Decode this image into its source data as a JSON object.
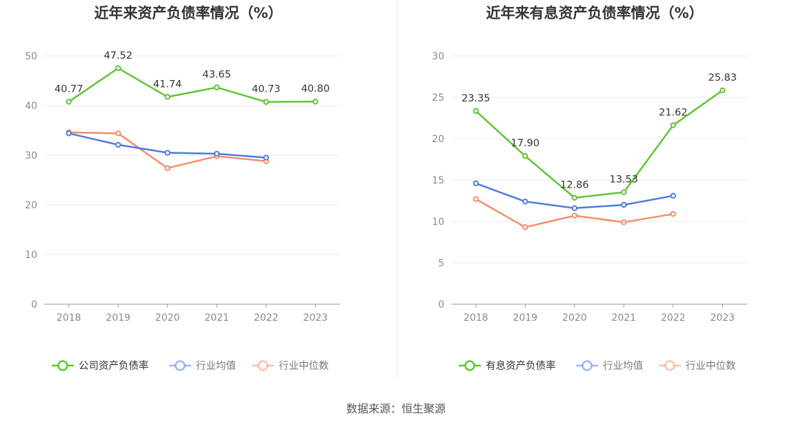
{
  "source": "数据来源：恒生聚源",
  "chart_data": [
    {
      "type": "line",
      "title": "近年来资产负债率情况（%）",
      "categories": [
        "2018",
        "2019",
        "2020",
        "2021",
        "2022",
        "2023"
      ],
      "ylim": [
        0,
        50
      ],
      "yticks": [
        "0",
        "10",
        "20",
        "30",
        "40",
        "50"
      ],
      "series": [
        {
          "name": "公司资产负债率",
          "color": "#5ec531",
          "values": [
            40.77,
            47.52,
            41.74,
            43.65,
            40.73,
            40.8
          ],
          "labels": [
            "40.77",
            "47.52",
            "41.74",
            "43.65",
            "40.73",
            "40.80"
          ],
          "show_labels": true
        },
        {
          "name": "行业均值",
          "color": "#4c7be0",
          "values": [
            34.4,
            32.1,
            30.5,
            30.3,
            29.5,
            null
          ],
          "show_labels": false
        },
        {
          "name": "行业中位数",
          "color": "#f58c68",
          "values": [
            34.6,
            34.4,
            27.4,
            29.8,
            28.8,
            null
          ],
          "show_labels": false
        }
      ]
    },
    {
      "type": "line",
      "title": "近年来有息资产负债率情况（%）",
      "categories": [
        "2018",
        "2019",
        "2020",
        "2021",
        "2022",
        "2023"
      ],
      "ylim": [
        0,
        30
      ],
      "yticks": [
        "0",
        "5",
        "10",
        "15",
        "20",
        "25",
        "30"
      ],
      "series": [
        {
          "name": "有息资产负债率",
          "color": "#5ec531",
          "values": [
            23.35,
            17.9,
            12.86,
            13.53,
            21.62,
            25.83
          ],
          "labels": [
            "23.35",
            "17.90",
            "12.86",
            "13.53",
            "21.62",
            "25.83"
          ],
          "show_labels": true
        },
        {
          "name": "行业均值",
          "color": "#4c7be0",
          "values": [
            14.6,
            12.4,
            11.6,
            12.0,
            13.1,
            null
          ],
          "show_labels": false
        },
        {
          "name": "行业中位数",
          "color": "#f58c68",
          "values": [
            12.7,
            9.3,
            10.7,
            9.9,
            10.9,
            null
          ],
          "show_labels": false
        }
      ]
    }
  ]
}
